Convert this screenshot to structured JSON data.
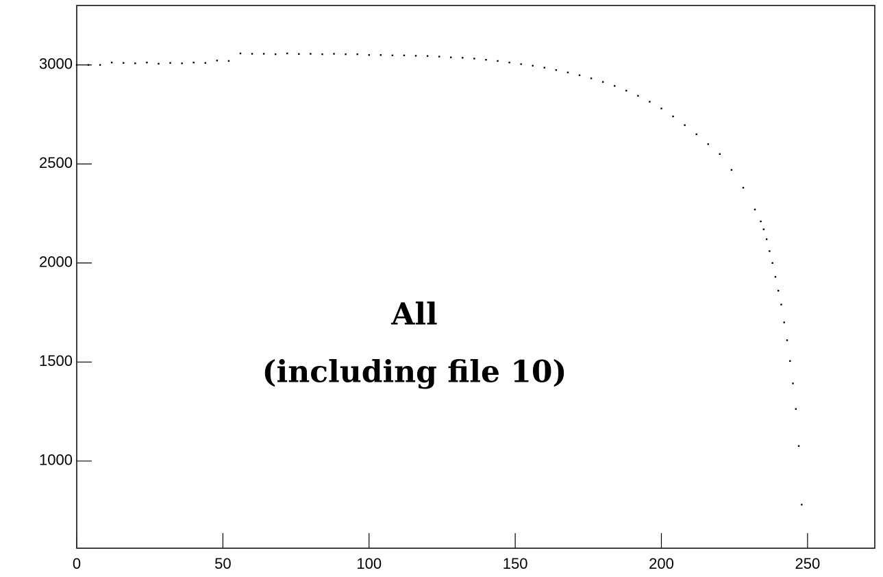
{
  "chart_data": {
    "type": "scatter",
    "annotations": [
      "All",
      "(including file 10)"
    ],
    "x": [
      0,
      4,
      8,
      12,
      16,
      20,
      24,
      28,
      32,
      36,
      40,
      44,
      48,
      52,
      56,
      60,
      64,
      68,
      72,
      76,
      80,
      84,
      88,
      92,
      96,
      100,
      104,
      108,
      112,
      116,
      120,
      124,
      128,
      132,
      136,
      140,
      144,
      148,
      152,
      156,
      160,
      164,
      168,
      172,
      176,
      180,
      184,
      188,
      192,
      196,
      200,
      204,
      208,
      212,
      216,
      220,
      224,
      228,
      232,
      234,
      235,
      236,
      237,
      238,
      239,
      240,
      241,
      242,
      243,
      244,
      245,
      246,
      247,
      248
    ],
    "values": [
      3000,
      3000,
      3000,
      3012,
      3010,
      3008,
      3012,
      3006,
      3010,
      3008,
      3012,
      3010,
      3022,
      3020,
      3058,
      3056,
      3056,
      3054,
      3058,
      3055,
      3056,
      3054,
      3056,
      3054,
      3054,
      3050,
      3050,
      3048,
      3048,
      3046,
      3045,
      3042,
      3038,
      3036,
      3032,
      3026,
      3020,
      3012,
      3004,
      2996,
      2986,
      2974,
      2962,
      2948,
      2932,
      2914,
      2894,
      2870,
      2844,
      2814,
      2780,
      2740,
      2696,
      2650,
      2600,
      2550,
      2470,
      2380,
      2270,
      2210,
      2170,
      2120,
      2060,
      2000,
      1930,
      1860,
      1790,
      1700,
      1610,
      1505,
      1392,
      1263,
      1076,
      780
    ],
    "color": "#000000",
    "xlim": [
      0,
      273
    ],
    "ylim": [
      560,
      3300
    ],
    "xticks": [
      0,
      50,
      100,
      150,
      200,
      250
    ],
    "yticks": [
      1000,
      1500,
      2000,
      2500,
      3000
    ],
    "grid": false
  }
}
